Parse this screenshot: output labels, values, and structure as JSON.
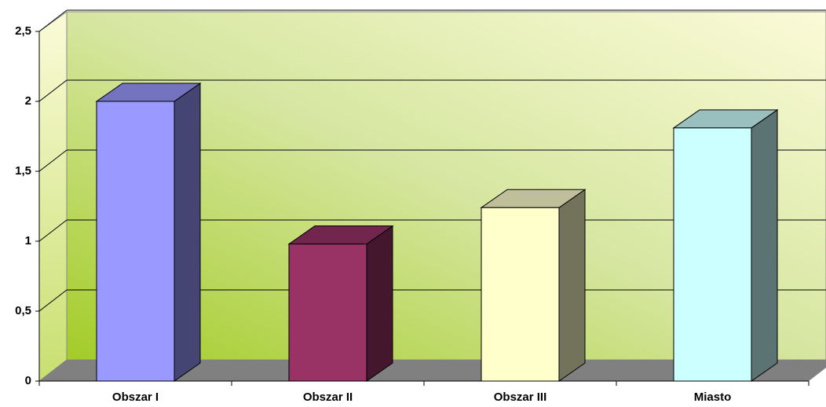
{
  "chart_data": {
    "type": "bar3d",
    "categories": [
      "Obszar I",
      "Obszar II",
      "Obszar III",
      "Miasto"
    ],
    "series": [
      {
        "values": [
          2,
          0.98,
          1.24,
          1.81
        ],
        "colors": [
          "#9999ff",
          "#993366",
          "#ffffcc",
          "#ccffff"
        ]
      }
    ],
    "ylim": [
      0,
      2.5
    ],
    "yticks": [
      0,
      {
        "value": 0.5,
        "label": "0,5"
      },
      1,
      {
        "value": 1.5,
        "label": "1,5"
      },
      2,
      {
        "value": 2.5,
        "label": "2,5"
      }
    ],
    "grid": true
  }
}
